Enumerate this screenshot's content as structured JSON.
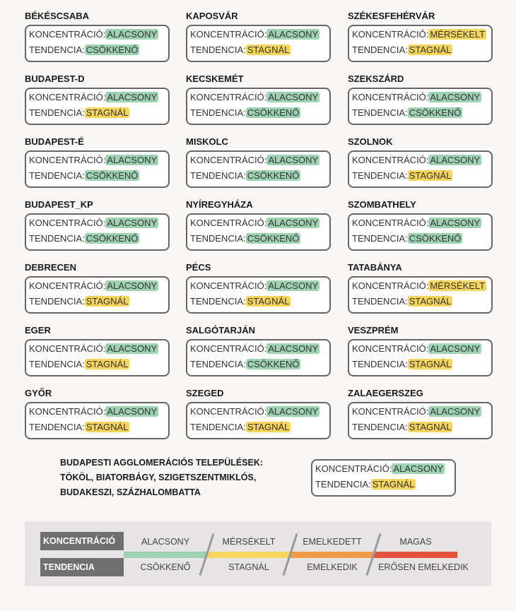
{
  "labels": {
    "koncentracio": "KONCENTRÁCIÓ:",
    "tendencia": "TENDENCIA:"
  },
  "badge_colors": {
    "ALACSONY": "#9dd3b3",
    "MÉRSÉKELT": "#f7d55a",
    "CSÖKKENŐ": "#9dd3b3",
    "STAGNÁL": "#f7d55a"
  },
  "cities": [
    {
      "name": "BÉKÉSCSABA",
      "koncentracio": "ALACSONY",
      "tendencia": "CSÖKKENŐ"
    },
    {
      "name": "KAPOSVÁR",
      "koncentracio": "ALACSONY",
      "tendencia": "STAGNÁL"
    },
    {
      "name": "SZÉKESFEHÉRVÁR",
      "koncentracio": "MÉRSÉKELT",
      "tendencia": "STAGNÁL"
    },
    {
      "name": "BUDAPEST-D",
      "koncentracio": "ALACSONY",
      "tendencia": "STAGNÁL"
    },
    {
      "name": "KECSKEMÉT",
      "koncentracio": "ALACSONY",
      "tendencia": "CSÖKKENŐ"
    },
    {
      "name": "SZEKSZÁRD",
      "koncentracio": "ALACSONY",
      "tendencia": "CSÖKKENŐ"
    },
    {
      "name": "BUDAPEST-É",
      "koncentracio": "ALACSONY",
      "tendencia": "CSÖKKENŐ"
    },
    {
      "name": "MISKOLC",
      "koncentracio": "ALACSONY",
      "tendencia": "CSÖKKENŐ"
    },
    {
      "name": "SZOLNOK",
      "koncentracio": "ALACSONY",
      "tendencia": "STAGNÁL"
    },
    {
      "name": "BUDAPEST_KP",
      "koncentracio": "ALACSONY",
      "tendencia": "CSÖKKENŐ"
    },
    {
      "name": "NYÍREGYHÁZA",
      "koncentracio": "ALACSONY",
      "tendencia": "CSÖKKENŐ"
    },
    {
      "name": "SZOMBATHELY",
      "koncentracio": "ALACSONY",
      "tendencia": "CSÖKKENŐ"
    },
    {
      "name": "DEBRECEN",
      "koncentracio": "ALACSONY",
      "tendencia": "STAGNÁL"
    },
    {
      "name": "PÉCS",
      "koncentracio": "ALACSONY",
      "tendencia": "STAGNÁL"
    },
    {
      "name": "TATABÁNYA",
      "koncentracio": "MÉRSÉKELT",
      "tendencia": "STAGNÁL"
    },
    {
      "name": "EGER",
      "koncentracio": "ALACSONY",
      "tendencia": "STAGNÁL"
    },
    {
      "name": "SALGÓTARJÁN",
      "koncentracio": "ALACSONY",
      "tendencia": "CSÖKKENŐ"
    },
    {
      "name": "VESZPRÉM",
      "koncentracio": "ALACSONY",
      "tendencia": "STAGNÁL"
    },
    {
      "name": "GYŐR",
      "koncentracio": "ALACSONY",
      "tendencia": "STAGNÁL"
    },
    {
      "name": "SZEGED",
      "koncentracio": "ALACSONY",
      "tendencia": "STAGNÁL"
    },
    {
      "name": "ZALAEGERSZEG",
      "koncentracio": "ALACSONY",
      "tendencia": "STAGNÁL"
    }
  ],
  "agglomeration": {
    "lines": [
      "BUDAPESTI AGGLOMERÁCIÓS TELEPÜLÉSEK:",
      "TÖKÖL, BIATORBÁGY, SZIGETSZENTMIKLÓS,",
      "BUDAKESZI, SZÁZHALOMBATTA"
    ],
    "koncentracio": "ALACSONY",
    "tendencia": "STAGNÁL"
  },
  "legend": {
    "row_labels": [
      "KONCENTRÁCIÓ",
      "TENDENCIA"
    ],
    "levels": [
      {
        "koncentracio": "ALACSONY",
        "tendencia": "CSÖKKENŐ",
        "color": "#9dd3b3"
      },
      {
        "koncentracio": "MÉRSÉKELT",
        "tendencia": "STAGNÁL",
        "color": "#f7d55a"
      },
      {
        "koncentracio": "EMELKEDETT",
        "tendencia": "EMELKEDIK",
        "color": "#f39a4a"
      },
      {
        "koncentracio": "MAGAS",
        "tendencia": "ERŐSEN EMELKEDIK",
        "color": "#e4533c"
      }
    ]
  }
}
